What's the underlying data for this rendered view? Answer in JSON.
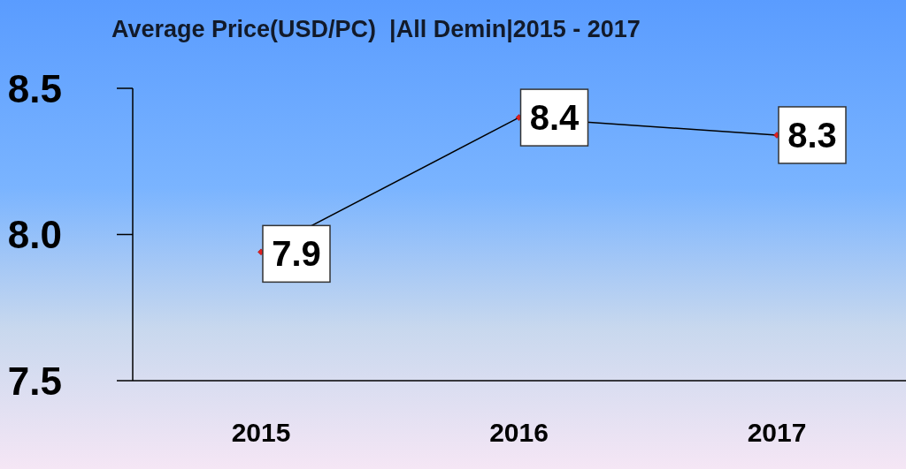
{
  "chart_data": {
    "type": "line",
    "title": "Average Price(USD/PC)  |All Demin|2015 - 2017",
    "categories": [
      "2015",
      "2016",
      "2017"
    ],
    "series": [
      {
        "color": "#000000",
        "values": [
          7.94,
          8.4,
          8.34
        ],
        "value_labels": [
          "7.9",
          "8.4",
          "8.3"
        ]
      }
    ],
    "ylim": [
      7.5,
      8.5
    ],
    "yticks": [
      {
        "value": 7.5,
        "label": "7.5"
      },
      {
        "value": 8.0,
        "label": "8.0"
      },
      {
        "value": 8.5,
        "label": "8.5"
      }
    ],
    "grid": false,
    "legend": false,
    "marker": "diamond",
    "line_style": "solid"
  }
}
